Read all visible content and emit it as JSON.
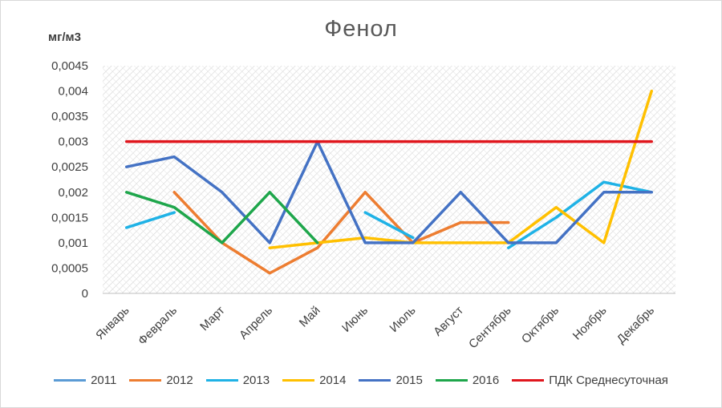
{
  "chart_data": {
    "type": "line",
    "title": "Фенол",
    "ylabel": "мг/м3",
    "xlabel": "",
    "categories": [
      "Январь",
      "Февраль",
      "Март",
      "Апрель",
      "Май",
      "Июнь",
      "Июль",
      "Август",
      "Сентябрь",
      "Октябрь",
      "Ноябрь",
      "Декабрь"
    ],
    "ylim": [
      0,
      0.0045
    ],
    "yticks": [
      "0",
      "0,0005",
      "0,001",
      "0,0015",
      "0,002",
      "0,0025",
      "0,003",
      "0,0035",
      "0,004",
      "0,0045"
    ],
    "grid": true,
    "legend_position": "bottom",
    "series": [
      {
        "name": "2011",
        "color": "#5b9bd5",
        "values": [
          null,
          null,
          null,
          null,
          null,
          null,
          null,
          null,
          null,
          null,
          null,
          null
        ]
      },
      {
        "name": "2012",
        "color": "#ed7d31",
        "values": [
          null,
          0.002,
          0.001,
          0.0004,
          0.0009,
          0.002,
          0.001,
          0.0014,
          0.0014,
          null,
          null,
          null
        ]
      },
      {
        "name": "2013",
        "color": "#1fb2e6",
        "values": [
          0.0013,
          0.0016,
          null,
          null,
          null,
          0.0016,
          0.0011,
          null,
          0.0009,
          0.0015,
          0.0022,
          0.002
        ]
      },
      {
        "name": "2014",
        "color": "#ffc000",
        "values": [
          null,
          null,
          null,
          0.0009,
          0.001,
          0.0011,
          0.001,
          0.001,
          0.001,
          0.0017,
          0.001,
          0.004
        ]
      },
      {
        "name": "2015",
        "color": "#4472c4",
        "values": [
          0.0025,
          0.0027,
          0.002,
          0.001,
          0.003,
          0.001,
          0.001,
          0.002,
          0.001,
          0.001,
          0.002,
          0.002
        ]
      },
      {
        "name": "2016",
        "color": "#1ea64b",
        "values": [
          0.002,
          0.0017,
          0.001,
          0.002,
          0.001,
          null,
          null,
          null,
          null,
          null,
          null,
          null
        ]
      },
      {
        "name": "ПДК Среднесуточная",
        "color": "#e0161d",
        "values": [
          0.003,
          0.003,
          0.003,
          0.003,
          0.003,
          0.003,
          0.003,
          0.003,
          0.003,
          0.003,
          0.003,
          0.003
        ]
      }
    ]
  }
}
